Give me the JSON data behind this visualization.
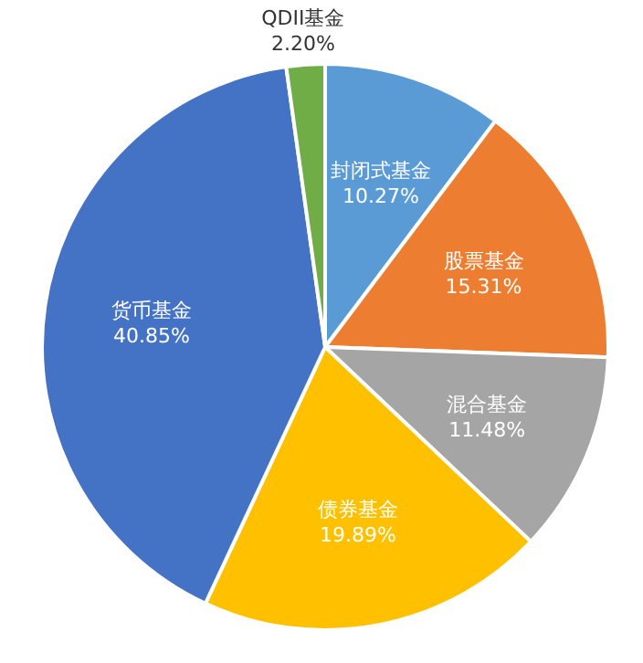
{
  "chart_data": {
    "type": "pie",
    "categories": [
      "封闭式基金",
      "股票基金",
      "混合基金",
      "债券基金",
      "货币基金",
      "QDII基金"
    ],
    "values": [
      10.27,
      15.31,
      11.48,
      19.89,
      40.85,
      2.2
    ],
    "value_labels": [
      "10.27%",
      "15.31%",
      "11.48%",
      "19.89%",
      "40.85%",
      "2.20%"
    ],
    "colors": [
      "#5b9bd5",
      "#ed7d31",
      "#a5a5a5",
      "#ffc000",
      "#4472c4",
      "#70ad47"
    ]
  }
}
